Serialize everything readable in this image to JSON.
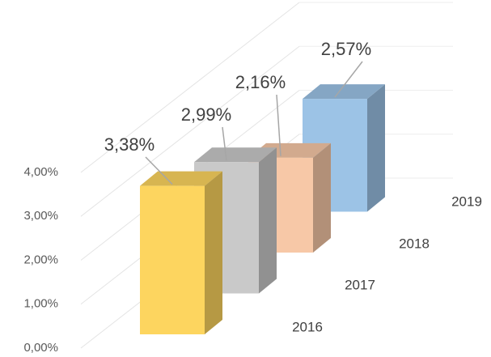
{
  "chart_data": {
    "type": "bar3d",
    "categories": [
      "2016",
      "2017",
      "2018",
      "2019"
    ],
    "values": [
      3.38,
      2.99,
      2.16,
      2.57
    ],
    "value_labels": [
      "3,38%",
      "2,99%",
      "2,16%",
      "2,57%"
    ],
    "colors": [
      "#fdd55f",
      "#c9c9c9",
      "#f7c8a7",
      "#9cc3e6"
    ],
    "ylim": [
      0,
      4
    ],
    "yticks": [
      {
        "value": 0,
        "label": "0,00%"
      },
      {
        "value": 1,
        "label": "1,00%"
      },
      {
        "value": 2,
        "label": "2,00%"
      },
      {
        "value": 3,
        "label": "3,00%"
      },
      {
        "value": 4,
        "label": "4,00%"
      }
    ],
    "grid": true
  }
}
